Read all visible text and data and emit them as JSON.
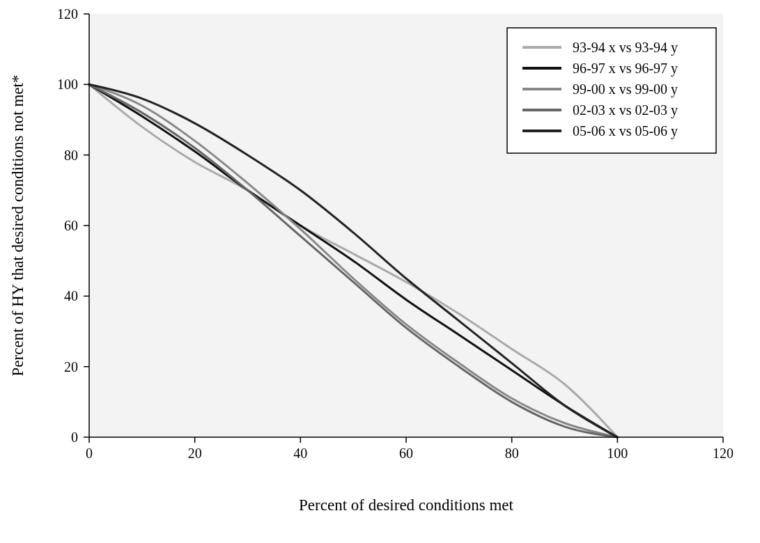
{
  "chart_data": {
    "type": "line",
    "xlabel": "Percent of desired conditions met",
    "ylabel": "Percent of HY that desired conditions not met*",
    "x": [
      0,
      10,
      20,
      30,
      40,
      50,
      60,
      70,
      80,
      90,
      100
    ],
    "series": [
      {
        "name": "93-94 x vs 93-94 y",
        "color": "#aaaaaa",
        "values": [
          100,
          88,
          78,
          70,
          60,
          52,
          44,
          35,
          25,
          15,
          0
        ]
      },
      {
        "name": "96-97 x vs 96-97 y",
        "color": "#111111",
        "values": [
          100,
          91,
          81,
          70,
          60,
          50,
          39,
          29,
          19,
          9,
          0
        ]
      },
      {
        "name": "99-00 x vs 99-00 y",
        "color": "#888888",
        "values": [
          100,
          94,
          84,
          72,
          59,
          45,
          32,
          21,
          11,
          4,
          0
        ]
      },
      {
        "name": "02-03 x vs 02-03 y",
        "color": "#666666",
        "values": [
          100,
          92,
          82,
          70,
          57,
          44,
          31,
          20,
          10,
          3,
          0
        ]
      },
      {
        "name": "05-06 x vs 05-06 y",
        "color": "#222222",
        "values": [
          100,
          96,
          89,
          80,
          70,
          58,
          45,
          33,
          21,
          9,
          0
        ]
      }
    ],
    "xlim": [
      0,
      120
    ],
    "xticks": [
      0,
      20,
      40,
      60,
      80,
      100,
      120
    ],
    "ylim": [
      0,
      120
    ],
    "yticks": [
      0,
      20,
      40,
      60,
      80,
      100,
      120
    ],
    "legend": "top right",
    "marker": "none",
    "line_style": "solid",
    "grid": false
  }
}
